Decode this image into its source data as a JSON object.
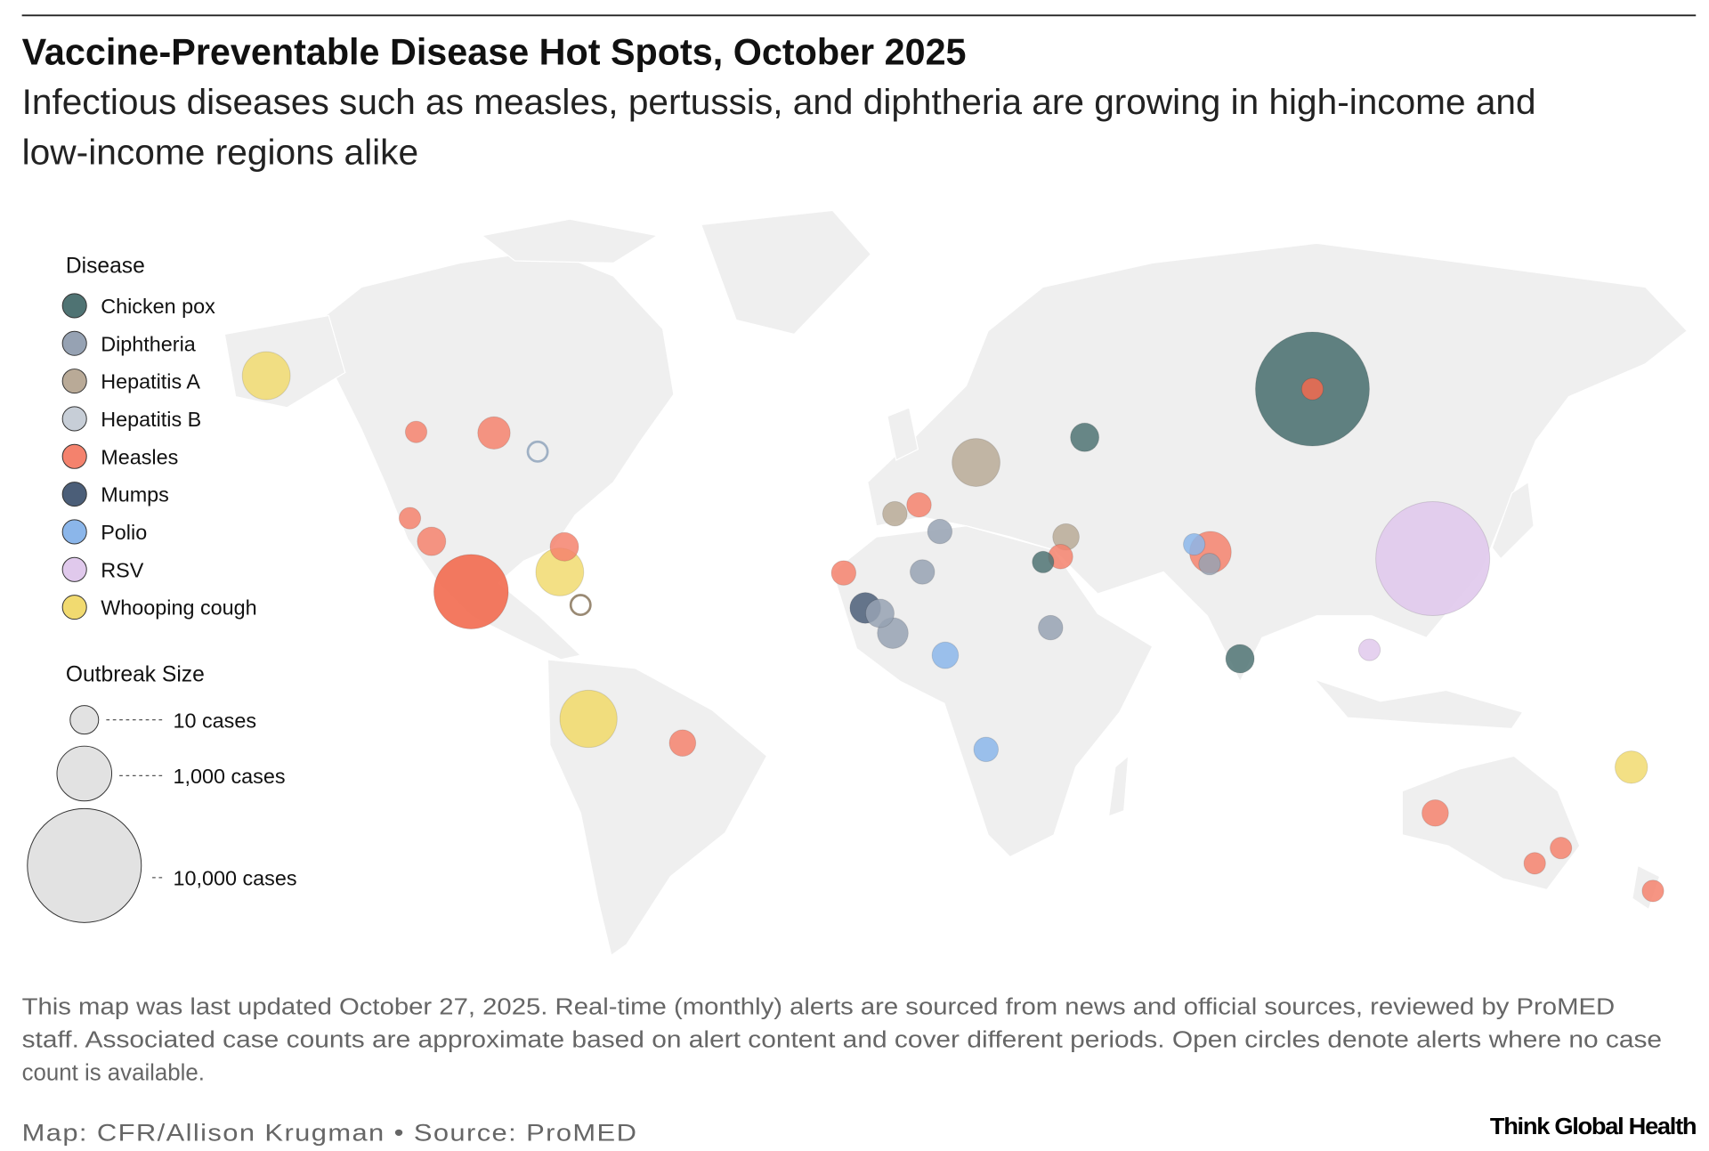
{
  "header": {
    "title": "Vaccine-Preventable Disease Hot Spots, October 2025",
    "subtitle_line1": "Infectious diseases such as measles, pertussis, and diphtheria are growing in high-income and",
    "subtitle_line2": "low-income regions alike"
  },
  "legend": {
    "disease_title": "Disease",
    "diseases": [
      {
        "key": "chickenpox",
        "label": "Chicken pox",
        "color": "#4f7373"
      },
      {
        "key": "diphtheria",
        "label": "Diphtheria",
        "color": "#96a2b3"
      },
      {
        "key": "hepa",
        "label": "Hepatitis A",
        "color": "#b9aa97"
      },
      {
        "key": "hepb",
        "label": "Hepatitis B",
        "color": "#c7ced7"
      },
      {
        "key": "measles",
        "label": "Measles",
        "color": "#f4826d"
      },
      {
        "key": "mumps",
        "label": "Mumps",
        "color": "#4b5e78"
      },
      {
        "key": "polio",
        "label": "Polio",
        "color": "#8bb6ea"
      },
      {
        "key": "rsv",
        "label": "RSV",
        "color": "#e0c9ec"
      },
      {
        "key": "whooping",
        "label": "Whooping cough",
        "color": "#f1da70"
      }
    ],
    "size_title": "Outbreak Size",
    "sizes": [
      {
        "cases": 10,
        "label": "10 cases"
      },
      {
        "cases": 1000,
        "label": "1,000 cases"
      },
      {
        "cases": 10000,
        "label": "10,000 cases"
      }
    ]
  },
  "chart_data": {
    "type": "bubble-map",
    "size_encoding": "outbreak case count",
    "open_circle_meaning": "no case count available",
    "points": [
      {
        "disease": "whooping",
        "lon": -151.3,
        "lat": 63.8,
        "cases": 300
      },
      {
        "disease": "measles",
        "lon": -115.3,
        "lat": 52.4,
        "cases": 3
      },
      {
        "disease": "measles",
        "lon": -96.6,
        "lat": 52.2,
        "cases": 20
      },
      {
        "disease": "hepb",
        "lon": -86.1,
        "lat": 48.4,
        "cases": null
      },
      {
        "disease": "measles",
        "lon": -116.8,
        "lat": 34.9,
        "cases": 3
      },
      {
        "disease": "measles",
        "lon": -111.6,
        "lat": 30.2,
        "cases": 10
      },
      {
        "disease": "measles",
        "lon": -102.1,
        "lat": 20.0,
        "cases": 2150
      },
      {
        "disease": "whooping",
        "lon": -80.8,
        "lat": 24.0,
        "cases": 300
      },
      {
        "disease": "measles",
        "lon": -79.7,
        "lat": 29.1,
        "cases": 10
      },
      {
        "disease": "hepa",
        "lon": -75.8,
        "lat": 17.3,
        "cases": null
      },
      {
        "disease": "whooping",
        "lon": -73.9,
        "lat": -5.8,
        "cases": 1100
      },
      {
        "disease": "measles",
        "lon": -51.3,
        "lat": -10.7,
        "cases": 7
      },
      {
        "disease": "measles",
        "lon": -12.6,
        "lat": 23.8,
        "cases": 5
      },
      {
        "disease": "hepa",
        "lon": -0.3,
        "lat": 35.8,
        "cases": 5
      },
      {
        "disease": "measles",
        "lon": 5.5,
        "lat": 37.6,
        "cases": 5
      },
      {
        "disease": "hepa",
        "lon": 19.2,
        "lat": 46.2,
        "cases": 300
      },
      {
        "disease": "diphtheria",
        "lon": 10.5,
        "lat": 32.2,
        "cases": 5
      },
      {
        "disease": "diphtheria",
        "lon": 6.3,
        "lat": 24.0,
        "cases": 5
      },
      {
        "disease": "diphtheria",
        "lon": -3.9,
        "lat": 15.6,
        "cases": 10
      },
      {
        "disease": "diphtheria",
        "lon": -0.8,
        "lat": 11.6,
        "cases": 15
      },
      {
        "disease": "mumps",
        "lon": -7.4,
        "lat": 16.7,
        "cases": 15
      },
      {
        "disease": "polio",
        "lon": 11.8,
        "lat": 7.1,
        "cases": 7
      },
      {
        "disease": "polio",
        "lon": 21.6,
        "lat": -12.0,
        "cases": 5
      },
      {
        "disease": "diphtheria",
        "lon": 37.1,
        "lat": 12.7,
        "cases": 5
      },
      {
        "disease": "hepa",
        "lon": 40.8,
        "lat": 31.1,
        "cases": 7
      },
      {
        "disease": "chickenpox",
        "lon": 35.3,
        "lat": 26.0,
        "cases": 3
      },
      {
        "disease": "measles",
        "lon": 39.5,
        "lat": 27.1,
        "cases": 5
      },
      {
        "disease": "chickenpox",
        "lon": 45.3,
        "lat": 51.3,
        "cases": 10
      },
      {
        "disease": "chickenpox",
        "lon": 100.0,
        "lat": 61.1,
        "cases": 10000
      },
      {
        "disease": "measles",
        "lon": 100.0,
        "lat": 61.1,
        "cases": 3
      },
      {
        "disease": "measles",
        "lon": 75.5,
        "lat": 28.0,
        "cases": 100
      },
      {
        "disease": "polio",
        "lon": 71.6,
        "lat": 29.6,
        "cases": 3
      },
      {
        "disease": "diphtheria",
        "lon": 75.3,
        "lat": 25.6,
        "cases": 3
      },
      {
        "disease": "chickenpox",
        "lon": 82.6,
        "lat": 6.4,
        "cases": 10
      },
      {
        "disease": "rsv",
        "lon": 128.9,
        "lat": 26.7,
        "cases": 10000
      },
      {
        "disease": "rsv",
        "lon": 113.7,
        "lat": 8.2,
        "cases": 3
      },
      {
        "disease": "whooping",
        "lon": 176.6,
        "lat": -15.6,
        "cases": 20
      },
      {
        "disease": "measles",
        "lon": 129.5,
        "lat": -24.9,
        "cases": 7
      },
      {
        "disease": "measles",
        "lon": 153.4,
        "lat": -35.1,
        "cases": 3
      },
      {
        "disease": "measles",
        "lon": 159.7,
        "lat": -32.0,
        "cases": 3
      },
      {
        "disease": "measles",
        "lon": 181.8,
        "lat": -40.7,
        "cases": 3
      }
    ]
  },
  "footer": {
    "note_line1": "This map was last updated October 27, 2025. Real-time (monthly) alerts are sourced from news and official sources, reviewed by ProMED",
    "note_line2": "staff. Associated case counts are approximate based on alert content and cover different periods. Open circles denote alerts where no case",
    "note_line3": "count is available.",
    "credit": "Map: CFR/Allison Krugman •  Source: ProMED",
    "logo": "Think Global Health"
  }
}
